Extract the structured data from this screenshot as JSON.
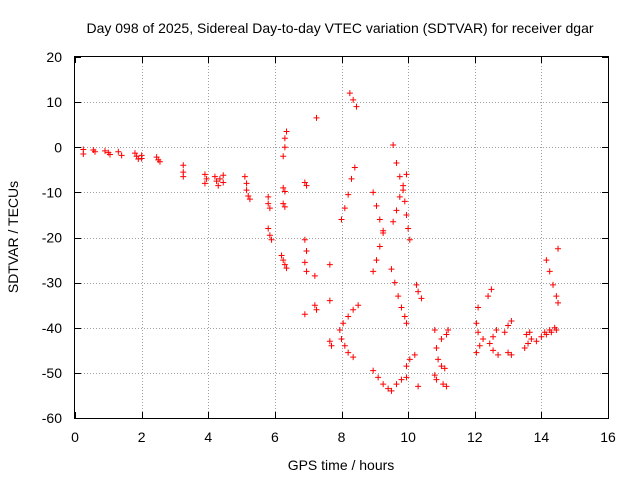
{
  "chart_data": {
    "type": "scatter",
    "title": "Day 098 of 2025, Sidereal Day-to-day VTEC variation (SDTVAR) for receiver dgar",
    "xlabel": "GPS time / hours",
    "ylabel": "SDTVAR / TECUs",
    "xlim": [
      0,
      16
    ],
    "ylim": [
      -60,
      20
    ],
    "xticks": [
      0,
      2,
      4,
      6,
      8,
      10,
      12,
      14,
      16
    ],
    "yticks": [
      -60,
      -50,
      -40,
      -30,
      -20,
      -10,
      0,
      10,
      20
    ],
    "xtick_labels": [
      "0",
      "2",
      "4",
      "6",
      "8",
      "10",
      "12",
      "14",
      "16"
    ],
    "ytick_labels": [
      "-60",
      "-50",
      "-40",
      "-30",
      "-20",
      "-10",
      "0",
      "10",
      "20"
    ],
    "grid": true,
    "marker": "+",
    "color": "#ff0000",
    "series": [
      {
        "name": "SDTVAR",
        "points": [
          [
            0.25,
            -0.5
          ],
          [
            0.25,
            -1.5
          ],
          [
            0.55,
            -0.6
          ],
          [
            0.6,
            -1.0
          ],
          [
            0.9,
            -0.8
          ],
          [
            1.0,
            -1.2
          ],
          [
            1.05,
            -1.6
          ],
          [
            1.3,
            -1.0
          ],
          [
            1.4,
            -1.8
          ],
          [
            1.8,
            -1.3
          ],
          [
            1.85,
            -2.0
          ],
          [
            1.9,
            -2.6
          ],
          [
            2.0,
            -1.8
          ],
          [
            2.0,
            -2.5
          ],
          [
            2.45,
            -2.2
          ],
          [
            2.5,
            -2.8
          ],
          [
            2.55,
            -3.2
          ],
          [
            3.25,
            -4.0
          ],
          [
            3.25,
            -5.5
          ],
          [
            3.25,
            -6.5
          ],
          [
            3.9,
            -6.0
          ],
          [
            3.95,
            -7.0
          ],
          [
            3.9,
            -8.0
          ],
          [
            4.2,
            -6.5
          ],
          [
            4.25,
            -7.5
          ],
          [
            4.3,
            -8.5
          ],
          [
            4.35,
            -7.0
          ],
          [
            4.45,
            -6.2
          ],
          [
            4.45,
            -7.8
          ],
          [
            5.1,
            -6.5
          ],
          [
            5.15,
            -8.0
          ],
          [
            5.15,
            -9.5
          ],
          [
            5.2,
            -10.8
          ],
          [
            5.25,
            -11.5
          ],
          [
            5.8,
            -11.0
          ],
          [
            5.8,
            -12.5
          ],
          [
            5.85,
            -13.5
          ],
          [
            5.8,
            -18.0
          ],
          [
            5.85,
            -19.5
          ],
          [
            5.9,
            -20.5
          ],
          [
            6.25,
            -2.0
          ],
          [
            6.3,
            0.0
          ],
          [
            6.3,
            2.0
          ],
          [
            6.35,
            3.5
          ],
          [
            6.25,
            -9.0
          ],
          [
            6.3,
            -9.8
          ],
          [
            6.25,
            -12.5
          ],
          [
            6.3,
            -13.2
          ],
          [
            6.2,
            -24.0
          ],
          [
            6.25,
            -25.0
          ],
          [
            6.3,
            -26.0
          ],
          [
            6.35,
            -26.8
          ],
          [
            6.9,
            -7.8
          ],
          [
            6.95,
            -8.5
          ],
          [
            6.9,
            -20.5
          ],
          [
            6.95,
            -23.0
          ],
          [
            6.9,
            -25.5
          ],
          [
            6.95,
            -27.5
          ],
          [
            6.9,
            -37.0
          ],
          [
            7.25,
            6.5
          ],
          [
            7.2,
            -28.5
          ],
          [
            7.2,
            -35.0
          ],
          [
            7.25,
            -36.0
          ],
          [
            7.65,
            -26.0
          ],
          [
            7.65,
            -34.0
          ],
          [
            7.65,
            -43.0
          ],
          [
            7.7,
            -44.0
          ],
          [
            8.0,
            -16.0
          ],
          [
            8.1,
            -13.5
          ],
          [
            8.2,
            -10.5
          ],
          [
            8.3,
            -7.0
          ],
          [
            8.4,
            -4.5
          ],
          [
            8.25,
            12.0
          ],
          [
            8.35,
            10.5
          ],
          [
            8.45,
            9.0
          ],
          [
            7.95,
            -40.5
          ],
          [
            8.0,
            -42.5
          ],
          [
            8.1,
            -44.0
          ],
          [
            8.2,
            -45.5
          ],
          [
            8.35,
            -46.5
          ],
          [
            8.05,
            -39.0
          ],
          [
            8.2,
            -37.5
          ],
          [
            8.35,
            -36.0
          ],
          [
            8.5,
            -35.0
          ],
          [
            8.95,
            -10.0
          ],
          [
            9.05,
            -13.0
          ],
          [
            9.15,
            -16.0
          ],
          [
            9.25,
            -18.5
          ],
          [
            8.95,
            -27.5
          ],
          [
            9.05,
            -25.0
          ],
          [
            9.15,
            -22.0
          ],
          [
            9.25,
            -19.0
          ],
          [
            8.95,
            -49.5
          ],
          [
            9.1,
            -51.0
          ],
          [
            9.25,
            -52.5
          ],
          [
            9.4,
            -53.5
          ],
          [
            9.55,
            0.5
          ],
          [
            9.65,
            -3.5
          ],
          [
            9.75,
            -6.5
          ],
          [
            9.85,
            -9.5
          ],
          [
            9.9,
            -12.0
          ],
          [
            9.95,
            -15.0
          ],
          [
            10.0,
            -18.0
          ],
          [
            10.05,
            -20.5
          ],
          [
            9.55,
            -16.5
          ],
          [
            9.65,
            -14.0
          ],
          [
            9.75,
            -11.0
          ],
          [
            9.85,
            -8.5
          ],
          [
            9.95,
            -6.0
          ],
          [
            9.5,
            -27.0
          ],
          [
            9.6,
            -30.0
          ],
          [
            9.7,
            -33.0
          ],
          [
            9.8,
            -35.5
          ],
          [
            9.9,
            -37.5
          ],
          [
            9.95,
            -39.0
          ],
          [
            9.5,
            -54.0
          ],
          [
            9.65,
            -52.5
          ],
          [
            9.8,
            -51.5
          ],
          [
            9.95,
            -51.0
          ],
          [
            9.95,
            -48.5
          ],
          [
            10.05,
            -47.0
          ],
          [
            10.2,
            -46.0
          ],
          [
            10.25,
            -30.5
          ],
          [
            10.3,
            -32.0
          ],
          [
            10.4,
            -33.5
          ],
          [
            10.3,
            -53.0
          ],
          [
            10.8,
            -50.5
          ],
          [
            10.85,
            -51.5
          ],
          [
            10.8,
            -40.5
          ],
          [
            10.85,
            -44.5
          ],
          [
            10.9,
            -47.0
          ],
          [
            11.0,
            -48.5
          ],
          [
            11.1,
            -49.0
          ],
          [
            11.0,
            -42.5
          ],
          [
            11.15,
            -41.5
          ],
          [
            11.2,
            -40.5
          ],
          [
            11.05,
            -52.5
          ],
          [
            11.15,
            -53.0
          ],
          [
            12.05,
            -39.0
          ],
          [
            12.1,
            -41.0
          ],
          [
            12.05,
            -45.5
          ],
          [
            12.15,
            -44.0
          ],
          [
            12.25,
            -42.5
          ],
          [
            12.1,
            -35.5
          ],
          [
            12.4,
            -33.0
          ],
          [
            12.5,
            -31.5
          ],
          [
            12.45,
            -43.5
          ],
          [
            12.55,
            -42.0
          ],
          [
            12.65,
            -40.5
          ],
          [
            12.55,
            -45.0
          ],
          [
            12.7,
            -46.0
          ],
          [
            12.9,
            -41.0
          ],
          [
            13.0,
            -39.5
          ],
          [
            13.1,
            -38.5
          ],
          [
            13.0,
            -45.5
          ],
          [
            13.1,
            -46.0
          ],
          [
            13.5,
            -44.5
          ],
          [
            13.6,
            -43.5
          ],
          [
            13.7,
            -42.5
          ],
          [
            13.55,
            -41.5
          ],
          [
            13.65,
            -41.0
          ],
          [
            13.85,
            -43.0
          ],
          [
            14.0,
            -42.0
          ],
          [
            14.15,
            -41.5
          ],
          [
            14.3,
            -41.0
          ],
          [
            14.45,
            -40.5
          ],
          [
            14.1,
            -41.0
          ],
          [
            14.25,
            -40.5
          ],
          [
            14.4,
            -40.0
          ],
          [
            14.15,
            -25.0
          ],
          [
            14.25,
            -27.5
          ],
          [
            14.35,
            -30.5
          ],
          [
            14.45,
            -33.0
          ],
          [
            14.5,
            -34.5
          ],
          [
            14.5,
            -22.5
          ]
        ]
      }
    ]
  }
}
